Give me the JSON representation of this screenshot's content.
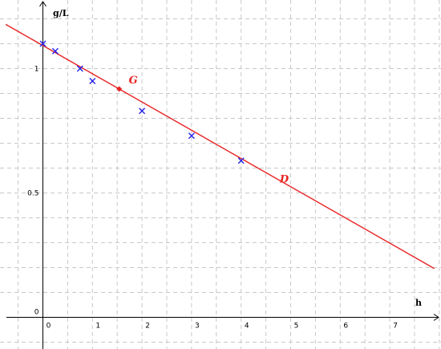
{
  "chart_data": {
    "type": "scatter",
    "xlabel": "h",
    "ylabel": "g/L",
    "origin_label": "0",
    "x_ticks": [
      0,
      1,
      2,
      3,
      4,
      5,
      6,
      7
    ],
    "y_ticks": [
      0.5,
      1
    ],
    "xlim": [
      -0.75,
      7.9
    ],
    "ylim": [
      -0.1,
      1.25
    ],
    "grid": true,
    "series": [
      {
        "marker": "x",
        "color": "#2323e8",
        "points": [
          {
            "x": 0,
            "y": 1.1
          },
          {
            "x": 0.25,
            "y": 1.07
          },
          {
            "x": 0.75,
            "y": 1.0
          },
          {
            "x": 1.0,
            "y": 0.95
          },
          {
            "x": 2.0,
            "y": 0.83
          },
          {
            "x": 3.0,
            "y": 0.73
          },
          {
            "x": 4.0,
            "y": 0.63
          }
        ]
      }
    ],
    "line": {
      "label": "D",
      "color": "#e82323",
      "slope": -0.1135,
      "intercept": 1.0927
    },
    "annotations": [
      {
        "label": "G",
        "x": 1.54,
        "y": 0.918,
        "color": "#e82323"
      },
      {
        "label": "D",
        "x": 4.78,
        "y": 0.555,
        "color": "#e82323"
      }
    ]
  }
}
